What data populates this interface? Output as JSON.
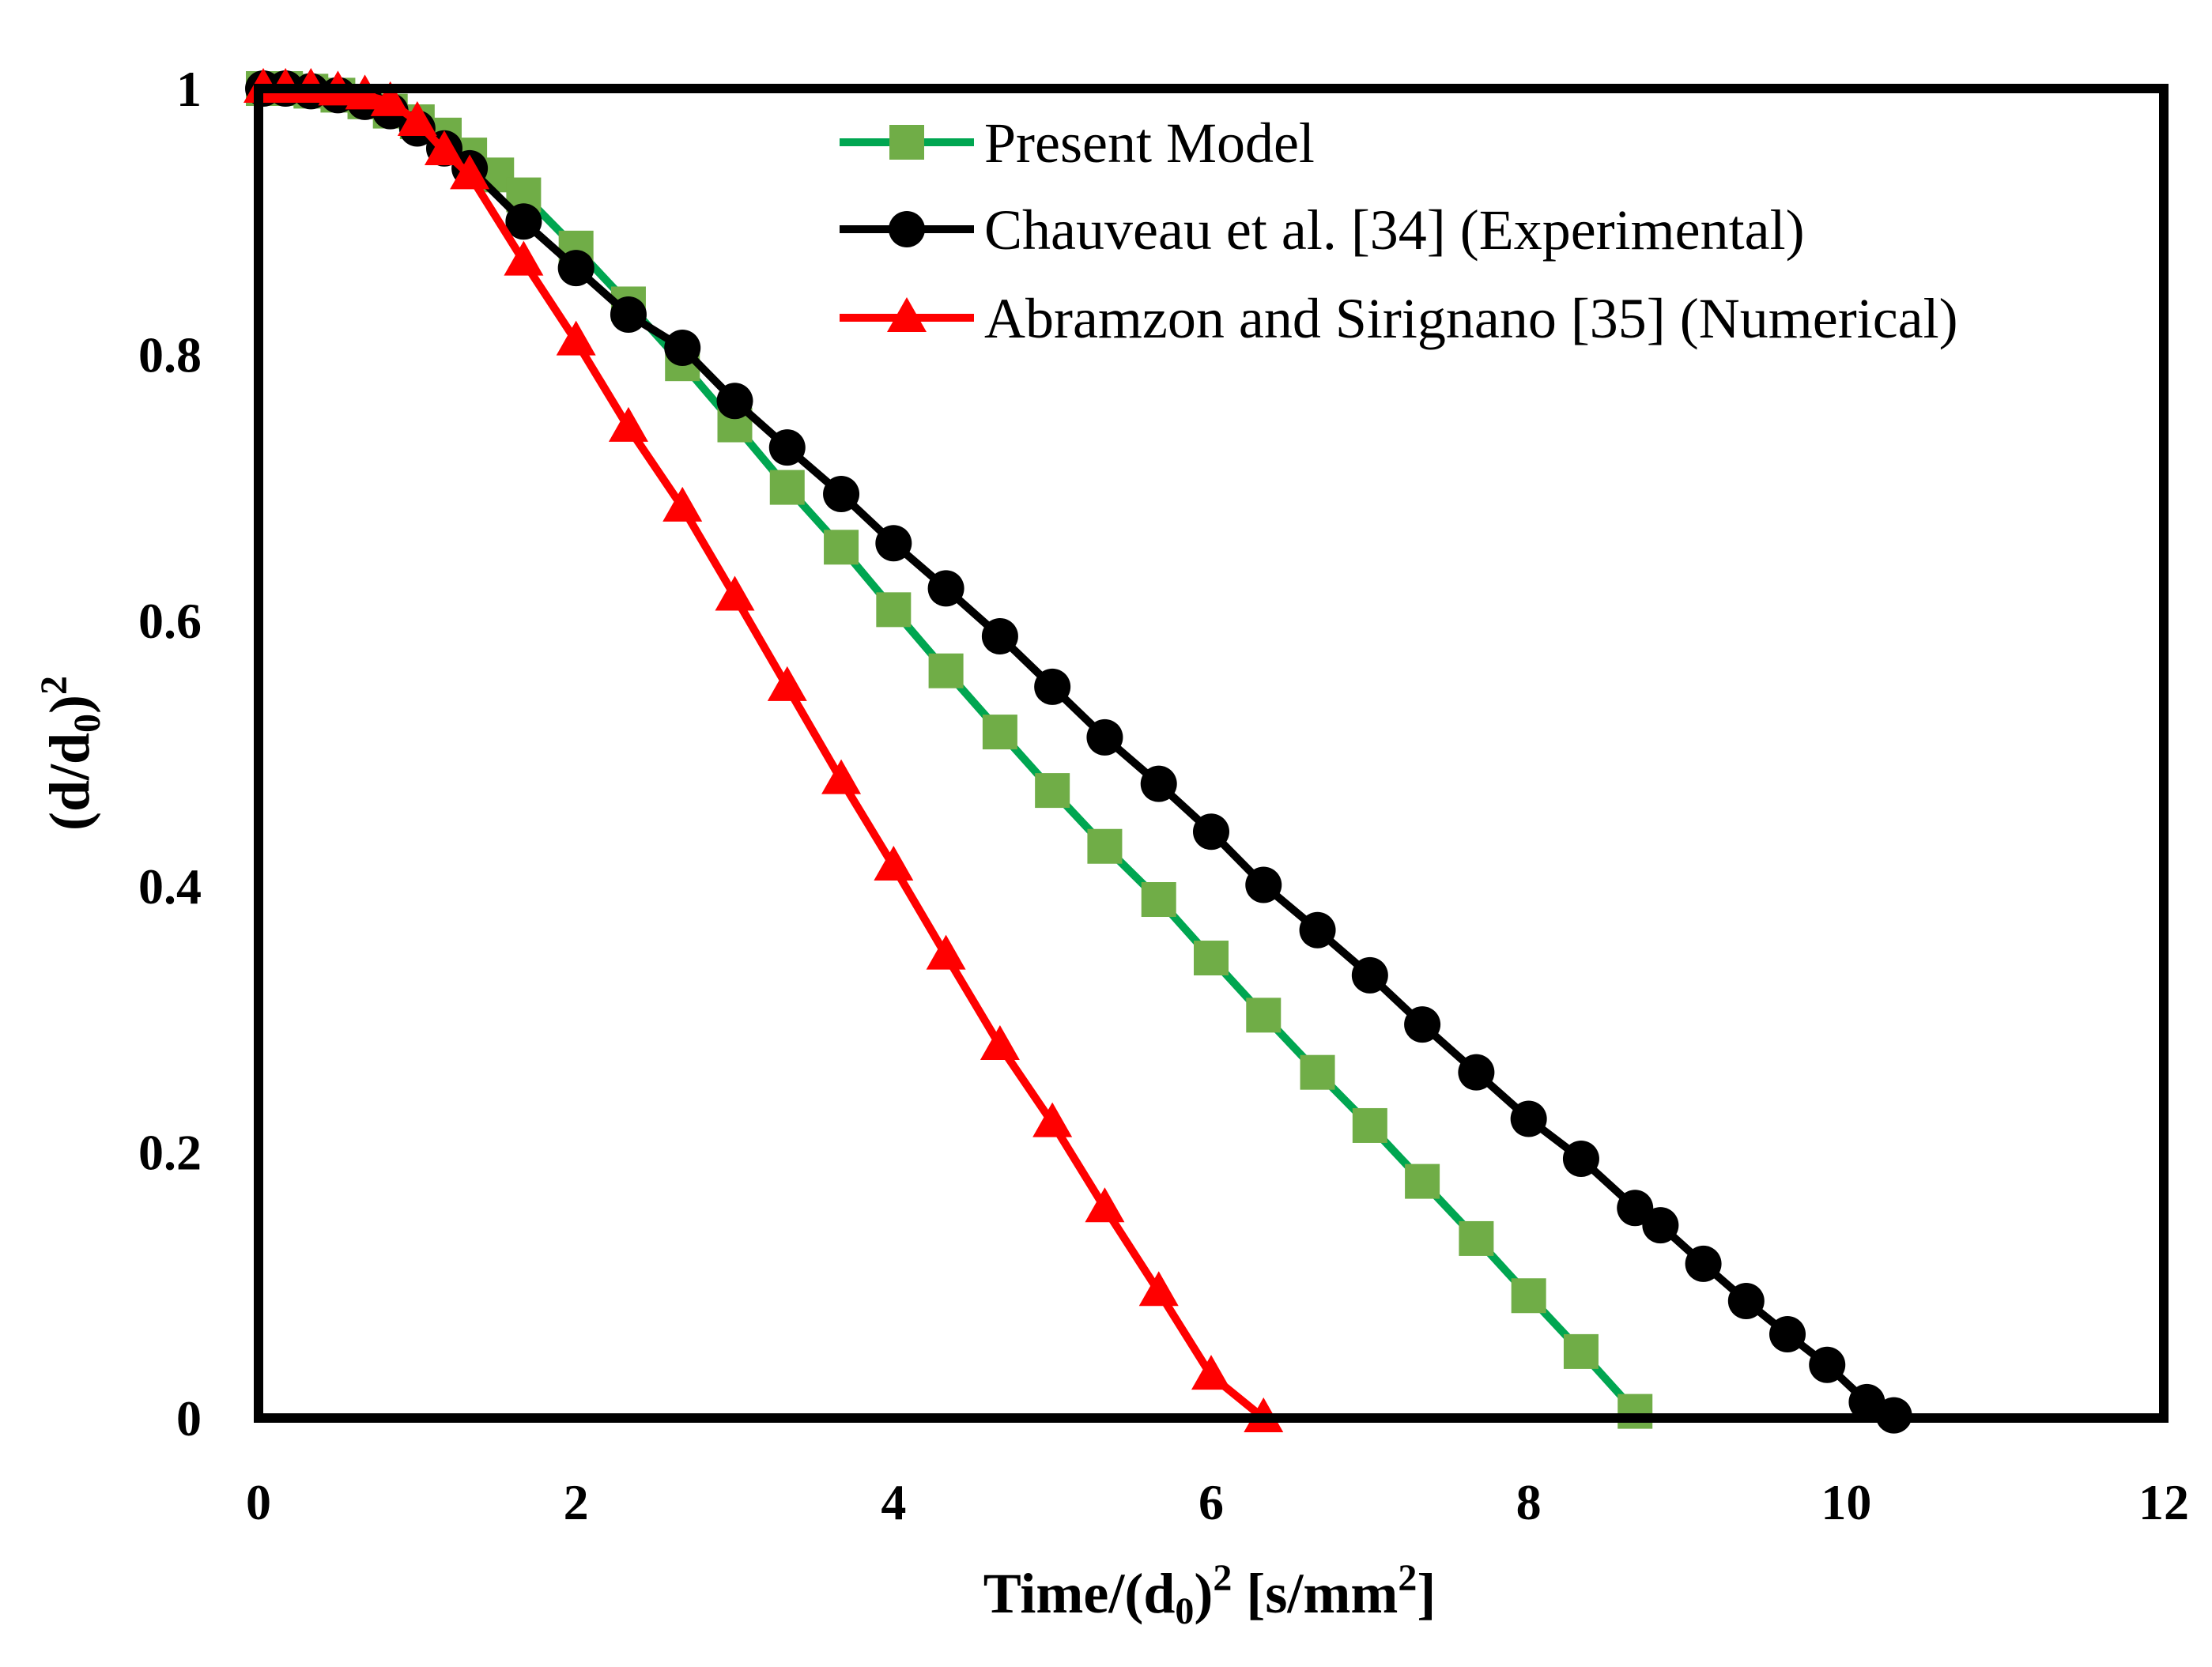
{
  "chart_data": {
    "type": "line",
    "title": "",
    "xlabel_parts": {
      "pre": "Time/(d",
      "sub": "0",
      "mid": ")",
      "sup": "2",
      "post": " [s/mm",
      "sup2": "2",
      "end": "]"
    },
    "ylabel_parts": {
      "pre": "(d/d",
      "sub": "0",
      "mid": ")",
      "sup": "2"
    },
    "xlim": [
      0,
      12
    ],
    "ylim": [
      0,
      1
    ],
    "x_ticks": [
      0,
      2,
      4,
      6,
      8,
      10,
      12
    ],
    "x_tick_labels": [
      "0",
      "2",
      "4",
      "6",
      "8",
      "10",
      "12"
    ],
    "y_ticks": [
      0,
      0.2,
      0.4,
      0.6,
      0.8,
      1
    ],
    "y_tick_labels": [
      "0",
      "0.2",
      "0.4",
      "0.6",
      "0.8",
      "1"
    ],
    "grid": false,
    "legend_position": "top-right",
    "series": [
      {
        "name": "Present Model",
        "line_color": "#00a651",
        "marker_color": "#70ad47",
        "marker": "square",
        "x": [
          0.03,
          0.17,
          0.33,
          0.5,
          0.67,
          0.83,
          1.0,
          1.17,
          1.33,
          1.5,
          1.67,
          2.0,
          2.33,
          2.67,
          3.0,
          3.33,
          3.67,
          4.0,
          4.33,
          4.67,
          5.0,
          5.33,
          5.67,
          6.0,
          6.33,
          6.67,
          7.0,
          7.33,
          7.67,
          8.0,
          8.33,
          8.67
        ],
        "y": [
          1.0,
          1.0,
          0.998,
          0.995,
          0.99,
          0.983,
          0.975,
          0.965,
          0.95,
          0.935,
          0.92,
          0.88,
          0.838,
          0.793,
          0.747,
          0.7,
          0.655,
          0.608,
          0.562,
          0.516,
          0.472,
          0.43,
          0.39,
          0.346,
          0.303,
          0.26,
          0.22,
          0.178,
          0.135,
          0.092,
          0.05,
          0.005
        ]
      },
      {
        "name": "Chauveau et al. [34] (Experimental)",
        "line_color": "#000000",
        "marker_color": "#000000",
        "marker": "circle",
        "x": [
          0.03,
          0.17,
          0.33,
          0.5,
          0.67,
          0.83,
          1.0,
          1.17,
          1.33,
          1.67,
          2.0,
          2.33,
          2.67,
          3.0,
          3.33,
          3.67,
          4.0,
          4.33,
          4.67,
          5.0,
          5.33,
          5.67,
          6.0,
          6.33,
          6.67,
          7.0,
          7.33,
          7.67,
          8.0,
          8.33,
          8.67,
          8.83,
          9.1,
          9.37,
          9.63,
          9.88,
          10.13,
          10.3
        ],
        "y": [
          1.0,
          1.0,
          0.998,
          0.995,
          0.99,
          0.983,
          0.97,
          0.955,
          0.94,
          0.9,
          0.865,
          0.83,
          0.805,
          0.765,
          0.73,
          0.695,
          0.658,
          0.624,
          0.588,
          0.55,
          0.512,
          0.477,
          0.441,
          0.401,
          0.367,
          0.333,
          0.296,
          0.26,
          0.225,
          0.195,
          0.158,
          0.145,
          0.116,
          0.088,
          0.063,
          0.04,
          0.012,
          0.002
        ]
      },
      {
        "name": "Abramzon and Sirignano [35] (Numerical)",
        "line_color": "#ff0000",
        "marker_color": "#ff0000",
        "marker": "triangle",
        "x": [
          0.03,
          0.17,
          0.33,
          0.5,
          0.67,
          0.83,
          1.0,
          1.17,
          1.33,
          1.67,
          2.0,
          2.33,
          2.67,
          3.0,
          3.33,
          3.67,
          4.0,
          4.33,
          4.67,
          5.0,
          5.33,
          5.67,
          6.0,
          6.33
        ],
        "y": [
          1.0,
          1.0,
          1.0,
          0.998,
          0.995,
          0.99,
          0.975,
          0.953,
          0.935,
          0.87,
          0.81,
          0.745,
          0.685,
          0.618,
          0.55,
          0.48,
          0.415,
          0.348,
          0.28,
          0.222,
          0.158,
          0.095,
          0.032,
          0.0
        ]
      }
    ]
  }
}
